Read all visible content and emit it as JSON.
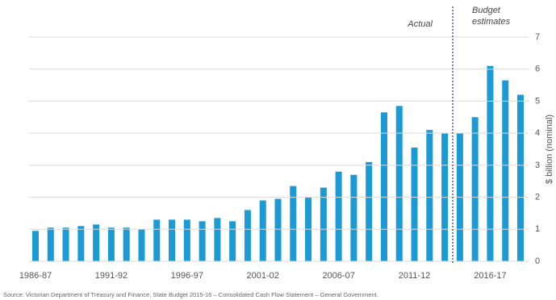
{
  "chart_data": {
    "type": "bar",
    "y_axis_label": "$ billion (nominal)",
    "annotations": {
      "actual": "Actual",
      "budget": [
        "Budget",
        "estimates"
      ]
    },
    "source": "Source: Victorian Department of Treasury and Finance, State Budget 2015-16 – Consolidated Cash Flow Statement – General Government.",
    "categories": [
      "1986-87",
      null,
      null,
      null,
      null,
      "1991-92",
      null,
      null,
      null,
      null,
      "1996-97",
      null,
      null,
      null,
      null,
      "2001-02",
      null,
      null,
      null,
      null,
      "2006-07",
      null,
      null,
      null,
      null,
      "2011-12",
      null,
      null,
      null,
      null,
      "2016-17",
      null,
      null
    ],
    "values": [
      0.95,
      1.05,
      1.05,
      1.1,
      1.15,
      1.05,
      1.05,
      1.0,
      1.3,
      1.3,
      1.3,
      1.25,
      1.35,
      1.25,
      1.6,
      1.9,
      1.95,
      2.35,
      2.0,
      2.3,
      2.8,
      2.7,
      3.1,
      4.65,
      4.85,
      3.55,
      4.1,
      4.0,
      4.0,
      4.5,
      6.1,
      5.65,
      5.2
    ],
    "color": "#1b9ad6",
    "ylim": [
      0,
      7
    ],
    "yticks": [
      0,
      1,
      2,
      3,
      4,
      5,
      6,
      7
    ],
    "grid": true
  }
}
